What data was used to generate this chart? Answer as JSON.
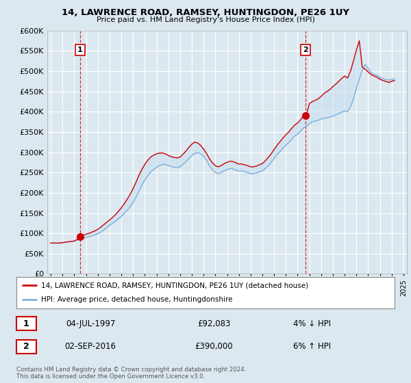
{
  "title": "14, LAWRENCE ROAD, RAMSEY, HUNTINGDON, PE26 1UY",
  "subtitle": "Price paid vs. HM Land Registry's House Price Index (HPI)",
  "legend_line1": "14, LAWRENCE ROAD, RAMSEY, HUNTINGDON, PE26 1UY (detached house)",
  "legend_line2": "HPI: Average price, detached house, Huntingdonshire",
  "transaction1_label": "1",
  "transaction1_date": "04-JUL-1997",
  "transaction1_price": "£92,083",
  "transaction1_hpi": "4% ↓ HPI",
  "transaction2_label": "2",
  "transaction2_date": "02-SEP-2016",
  "transaction2_price": "£390,000",
  "transaction2_hpi": "6% ↑ HPI",
  "footer": "Contains HM Land Registry data © Crown copyright and database right 2024.\nThis data is licensed under the Open Government Licence v3.0.",
  "house_color": "#cc0000",
  "hpi_color": "#7fb0d8",
  "hpi_fill_color": "#c8dff0",
  "background_color": "#dce8f0",
  "plot_bg_color": "#dce8f0",
  "ylim": [
    0,
    600000
  ],
  "yticks": [
    0,
    50000,
    100000,
    150000,
    200000,
    250000,
    300000,
    350000,
    400000,
    450000,
    500000,
    550000,
    600000
  ],
  "transaction1_year": 1997.5,
  "transaction1_value": 92083,
  "transaction2_year": 2016.67,
  "transaction2_value": 390000,
  "hpi_years": [
    1995.0,
    1995.25,
    1995.5,
    1995.75,
    1996.0,
    1996.25,
    1996.5,
    1996.75,
    1997.0,
    1997.25,
    1997.5,
    1997.75,
    1998.0,
    1998.25,
    1998.5,
    1998.75,
    1999.0,
    1999.25,
    1999.5,
    1999.75,
    2000.0,
    2000.25,
    2000.5,
    2000.75,
    2001.0,
    2001.25,
    2001.5,
    2001.75,
    2002.0,
    2002.25,
    2002.5,
    2002.75,
    2003.0,
    2003.25,
    2003.5,
    2003.75,
    2004.0,
    2004.25,
    2004.5,
    2004.75,
    2005.0,
    2005.25,
    2005.5,
    2005.75,
    2006.0,
    2006.25,
    2006.5,
    2006.75,
    2007.0,
    2007.25,
    2007.5,
    2007.75,
    2008.0,
    2008.25,
    2008.5,
    2008.75,
    2009.0,
    2009.25,
    2009.5,
    2009.75,
    2010.0,
    2010.25,
    2010.5,
    2010.75,
    2011.0,
    2011.25,
    2011.5,
    2011.75,
    2012.0,
    2012.25,
    2012.5,
    2012.75,
    2013.0,
    2013.25,
    2013.5,
    2013.75,
    2014.0,
    2014.25,
    2014.5,
    2014.75,
    2015.0,
    2015.25,
    2015.5,
    2015.75,
    2016.0,
    2016.25,
    2016.5,
    2016.75,
    2017.0,
    2017.25,
    2017.5,
    2017.75,
    2018.0,
    2018.25,
    2018.5,
    2018.75,
    2019.0,
    2019.25,
    2019.5,
    2019.75,
    2020.0,
    2020.25,
    2020.5,
    2020.75,
    2021.0,
    2021.25,
    2021.5,
    2021.75,
    2022.0,
    2022.25,
    2022.5,
    2022.75,
    2023.0,
    2023.25,
    2023.5,
    2023.75,
    2024.0,
    2024.25
  ],
  "hpi_values": [
    76000,
    76000,
    76000,
    76000,
    77000,
    78000,
    79000,
    80000,
    81000,
    83000,
    85000,
    87000,
    90000,
    92000,
    94000,
    96000,
    99000,
    103000,
    108000,
    114000,
    120000,
    125000,
    130000,
    136000,
    142000,
    149000,
    157000,
    166000,
    176000,
    189000,
    204000,
    219000,
    232000,
    242000,
    251000,
    258000,
    263000,
    267000,
    270000,
    270000,
    267000,
    265000,
    263000,
    262000,
    264000,
    270000,
    277000,
    285000,
    292000,
    297000,
    299000,
    296000,
    290000,
    280000,
    267000,
    257000,
    250000,
    247000,
    250000,
    254000,
    257000,
    260000,
    259000,
    256000,
    254000,
    254000,
    252000,
    250000,
    247000,
    247000,
    249000,
    252000,
    254000,
    260000,
    267000,
    275000,
    285000,
    294000,
    302000,
    310000,
    317000,
    324000,
    332000,
    340000,
    345000,
    352000,
    360000,
    364000,
    370000,
    375000,
    377000,
    379000,
    382000,
    384000,
    385000,
    387000,
    389000,
    392000,
    395000,
    399000,
    402000,
    400000,
    412000,
    432000,
    457000,
    480000,
    502000,
    517000,
    507000,
    497000,
    492000,
    490000,
    485000,
    482000,
    480000,
    478000,
    480000,
    482000
  ],
  "house_years": [
    1995.0,
    1995.25,
    1995.5,
    1995.75,
    1996.0,
    1996.25,
    1996.5,
    1996.75,
    1997.0,
    1997.25,
    1997.5,
    1997.75,
    1998.0,
    1998.25,
    1998.5,
    1998.75,
    1999.0,
    1999.25,
    1999.5,
    1999.75,
    2000.0,
    2000.25,
    2000.5,
    2000.75,
    2001.0,
    2001.25,
    2001.5,
    2001.75,
    2002.0,
    2002.25,
    2002.5,
    2002.75,
    2003.0,
    2003.25,
    2003.5,
    2003.75,
    2004.0,
    2004.25,
    2004.5,
    2004.75,
    2005.0,
    2005.25,
    2005.5,
    2005.75,
    2006.0,
    2006.25,
    2006.5,
    2006.75,
    2007.0,
    2007.25,
    2007.5,
    2007.75,
    2008.0,
    2008.25,
    2008.5,
    2008.75,
    2009.0,
    2009.25,
    2009.5,
    2009.75,
    2010.0,
    2010.25,
    2010.5,
    2010.75,
    2011.0,
    2011.25,
    2011.5,
    2011.75,
    2012.0,
    2012.25,
    2012.5,
    2012.75,
    2013.0,
    2013.25,
    2013.5,
    2013.75,
    2014.0,
    2014.25,
    2014.5,
    2014.75,
    2015.0,
    2015.25,
    2015.5,
    2015.75,
    2016.0,
    2016.25,
    2016.5,
    2016.75,
    2017.0,
    2017.25,
    2017.5,
    2017.75,
    2018.0,
    2018.25,
    2018.5,
    2018.75,
    2019.0,
    2019.25,
    2019.5,
    2019.75,
    2020.0,
    2020.25,
    2020.5,
    2020.75,
    2021.0,
    2021.25,
    2021.5,
    2021.75,
    2022.0,
    2022.25,
    2022.5,
    2022.75,
    2023.0,
    2023.25,
    2023.5,
    2023.75,
    2024.0,
    2024.25
  ],
  "house_values": [
    76000,
    76000,
    76000,
    76000,
    77000,
    78000,
    79000,
    80000,
    81000,
    85000,
    92083,
    95000,
    98000,
    100000,
    103000,
    106000,
    110000,
    115000,
    121000,
    127000,
    133000,
    139000,
    146000,
    154000,
    163000,
    173000,
    184000,
    196000,
    210000,
    226000,
    243000,
    258000,
    270000,
    280000,
    288000,
    293000,
    296000,
    298000,
    298000,
    296000,
    292000,
    289000,
    287000,
    286000,
    288000,
    295000,
    303000,
    312000,
    320000,
    325000,
    323000,
    317000,
    308000,
    297000,
    284000,
    274000,
    267000,
    264000,
    267000,
    272000,
    275000,
    278000,
    277000,
    274000,
    271000,
    271000,
    269000,
    267000,
    264000,
    264000,
    266000,
    269000,
    272000,
    279000,
    287000,
    296000,
    307000,
    317000,
    326000,
    335000,
    343000,
    350000,
    359000,
    367000,
    372000,
    380000,
    390000,
    392000,
    420000,
    425000,
    428000,
    432000,
    438000,
    445000,
    450000,
    455000,
    462000,
    468000,
    475000,
    482000,
    488000,
    483000,
    500000,
    525000,
    552000,
    575000,
    510000,
    505000,
    498000,
    492000,
    488000,
    485000,
    480000,
    477000,
    475000,
    472000,
    475000,
    477000
  ]
}
